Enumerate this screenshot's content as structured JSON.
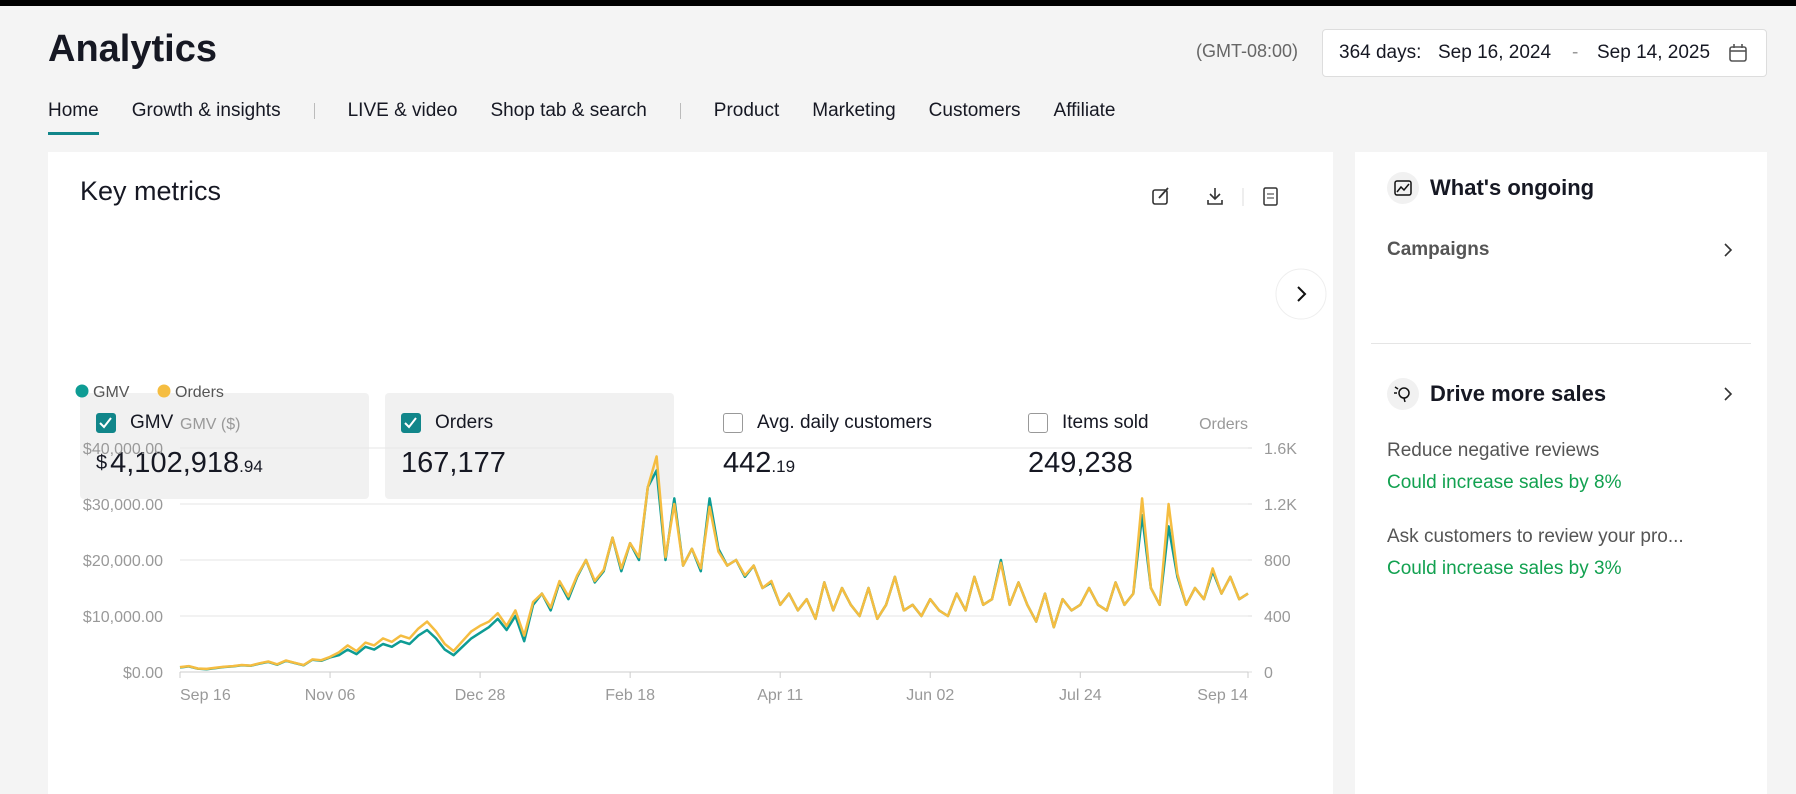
{
  "header": {
    "title": "Analytics",
    "timezone": "(GMT-08:00)",
    "range_label": "364 days:",
    "start": "Sep 16, 2024",
    "dash": "-",
    "end": "Sep 14, 2025"
  },
  "nav": [
    [
      "Home",
      "Growth & insights"
    ],
    [
      "LIVE & video",
      "Shop tab & search"
    ],
    [
      "Product",
      "Marketing",
      "Customers",
      "Affiliate"
    ]
  ],
  "key_metrics": {
    "title": "Key metrics",
    "items": [
      {
        "name": "GMV",
        "checked": true,
        "value": {
          "currency": "$",
          "whole": "4,102,918",
          "fraction": ".94"
        }
      },
      {
        "name": "Orders",
        "checked": true,
        "value": {
          "whole": "167,177"
        }
      },
      {
        "name": "Avg. daily customers",
        "checked": false,
        "value": {
          "whole": "442",
          "fraction": ".19"
        }
      },
      {
        "name": "Items sold",
        "checked": false,
        "value": {
          "whole": "249,238"
        }
      }
    ]
  },
  "chart_data": {
    "type": "line",
    "y_label": "GMV ($)",
    "y2_label": "Orders",
    "grid": true,
    "categories": [
      "Sep 16",
      null,
      null,
      null,
      null,
      null,
      null,
      null,
      null,
      null,
      null,
      null,
      null,
      null,
      null,
      null,
      null,
      "Nov 06",
      null,
      null,
      null,
      null,
      null,
      null,
      null,
      null,
      null,
      null,
      null,
      null,
      null,
      null,
      null,
      null,
      "Dec 28",
      null,
      null,
      null,
      null,
      null,
      null,
      null,
      null,
      null,
      null,
      null,
      null,
      null,
      null,
      null,
      null,
      "Feb 18",
      null,
      null,
      null,
      null,
      null,
      null,
      null,
      null,
      null,
      null,
      null,
      null,
      null,
      null,
      null,
      null,
      "Apr 11",
      null,
      null,
      null,
      null,
      null,
      null,
      null,
      null,
      null,
      null,
      null,
      null,
      null,
      null,
      null,
      null,
      "Jun 02",
      null,
      null,
      null,
      null,
      null,
      null,
      null,
      null,
      null,
      null,
      null,
      null,
      null,
      null,
      null,
      null,
      "Jul 24",
      null,
      null,
      null,
      null,
      null,
      null,
      null,
      null,
      null,
      null,
      null,
      null,
      null,
      null,
      null,
      null,
      null,
      null,
      "Sep 14"
    ],
    "ylim": [
      0,
      40000
    ],
    "yticks": [
      {
        "value": 0,
        "label": "$0.00"
      },
      {
        "value": 10000,
        "label": "$10,000.00"
      },
      {
        "value": 20000,
        "label": "$20,000.00"
      },
      {
        "value": 30000,
        "label": "$30,000.00"
      },
      {
        "value": 40000,
        "label": "$40,000.00"
      }
    ],
    "y2lim": [
      0,
      1600
    ],
    "y2ticks": [
      0,
      400,
      800,
      {
        "value": 1200,
        "label": "1.2K"
      },
      {
        "value": 1600,
        "label": "1.6K"
      }
    ],
    "series": [
      {
        "name": "GMV",
        "color": "#0e9c94",
        "values": [
          800,
          1000,
          600,
          500,
          700,
          900,
          1000,
          1200,
          1100,
          1500,
          1800,
          1300,
          2000,
          1600,
          1200,
          2200,
          2000,
          2600,
          3000,
          4000,
          3200,
          4500,
          4000,
          5000,
          4500,
          5500,
          5000,
          6500,
          7500,
          6000,
          4000,
          3000,
          4500,
          6000,
          7000,
          8000,
          9500,
          7500,
          10000,
          5500,
          12000,
          14000,
          11000,
          16000,
          13000,
          17000,
          20000,
          16000,
          18000,
          24000,
          18000,
          23000,
          20000,
          33000,
          36000,
          20000,
          31000,
          19000,
          22000,
          18000,
          31000,
          22000,
          19000,
          20000,
          17000,
          19000,
          15000,
          16000,
          12000,
          14000,
          11000,
          13000,
          9500,
          16000,
          11000,
          15000,
          12000,
          10000,
          15000,
          9500,
          12000,
          17000,
          11000,
          12000,
          10000,
          13000,
          11000,
          10000,
          14000,
          11000,
          17000,
          12000,
          13000,
          20000,
          12000,
          16000,
          12000,
          9000,
          14000,
          8000,
          13000,
          11000,
          12000,
          15000,
          12000,
          11000,
          16000,
          12000,
          14000,
          28000,
          15000,
          12000,
          26000,
          17000,
          12000,
          15000,
          13000,
          18000,
          14000,
          17000,
          13000,
          14000
        ]
      },
      {
        "name": "Orders",
        "color": "#f5bd41",
        "axis": "y2",
        "values": [
          35,
          42,
          25,
          22,
          30,
          38,
          42,
          50,
          46,
          62,
          75,
          55,
          82,
          66,
          50,
          90,
          84,
          108,
          140,
          190,
          150,
          210,
          190,
          240,
          215,
          260,
          240,
          310,
          360,
          290,
          200,
          150,
          220,
          290,
          330,
          360,
          420,
          330,
          440,
          260,
          500,
          560,
          460,
          650,
          540,
          690,
          800,
          650,
          730,
          960,
          740,
          920,
          820,
          1320,
          1540,
          820,
          1200,
          760,
          880,
          740,
          1180,
          860,
          760,
          800,
          690,
          760,
          600,
          650,
          480,
          560,
          440,
          520,
          380,
          640,
          440,
          600,
          480,
          400,
          600,
          380,
          480,
          680,
          440,
          480,
          400,
          520,
          440,
          400,
          560,
          440,
          680,
          480,
          520,
          780,
          480,
          640,
          480,
          360,
          560,
          320,
          520,
          440,
          480,
          600,
          480,
          440,
          640,
          480,
          560,
          1240,
          600,
          480,
          1200,
          700,
          480,
          600,
          520,
          740,
          560,
          680,
          520,
          560
        ]
      }
    ]
  },
  "sidebar": {
    "ongoing": {
      "title": "What's ongoing",
      "items": [
        "Campaigns"
      ]
    },
    "drive": {
      "title": "Drive more sales",
      "items": [
        {
          "text": "Reduce negative reviews",
          "impact": "Could increase sales by 8%"
        },
        {
          "text": "Ask customers to review your pro...",
          "impact": "Could increase sales by 3%"
        }
      ]
    }
  }
}
